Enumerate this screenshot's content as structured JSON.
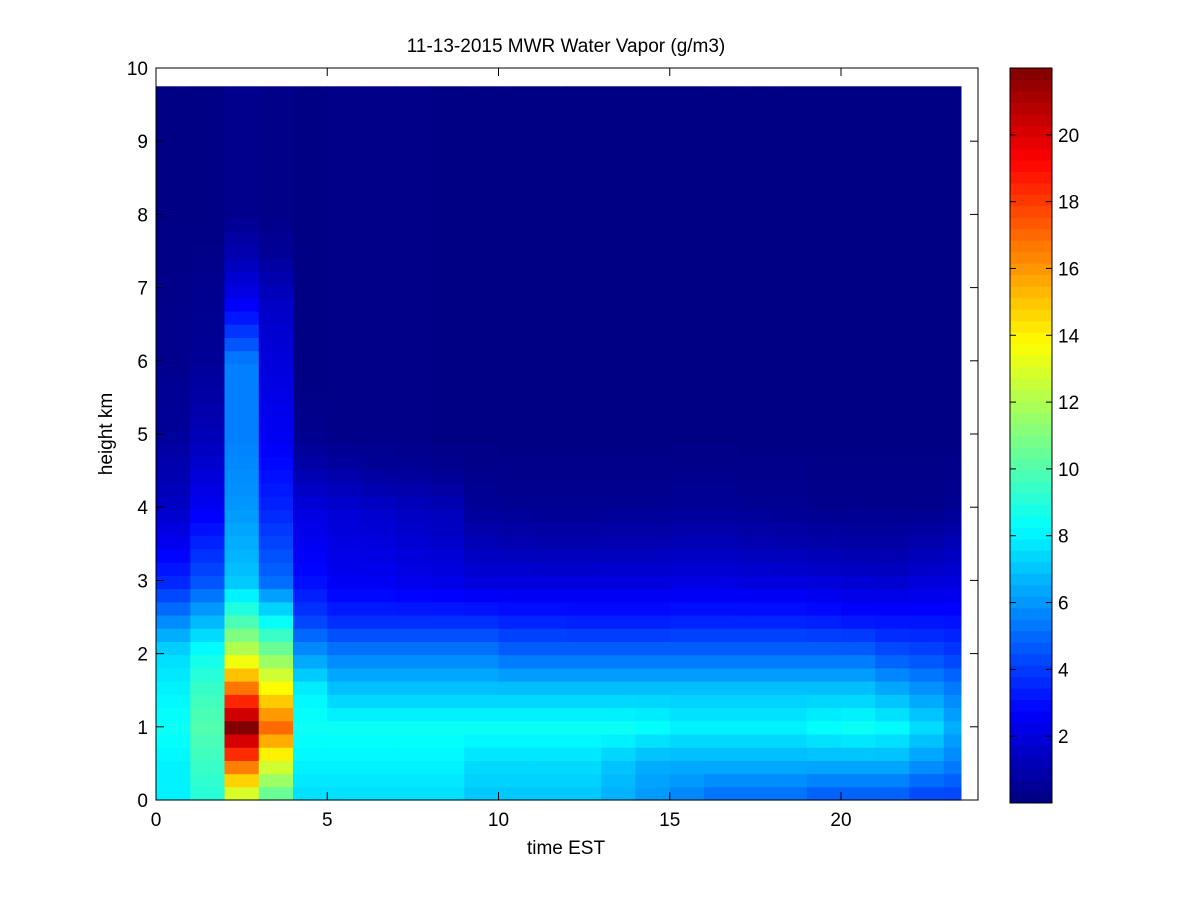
{
  "chart_data": {
    "type": "heatmap",
    "title": "11-13-2015 MWR Water Vapor (g/m3)",
    "xlabel": "time EST",
    "ylabel": "height km",
    "xlim": [
      0,
      24
    ],
    "ylim": [
      0,
      10
    ],
    "x_ticks": [
      0,
      5,
      10,
      15,
      20
    ],
    "y_ticks": [
      0,
      1,
      2,
      3,
      4,
      5,
      6,
      7,
      8,
      9,
      10
    ],
    "colorbar": {
      "colormap": "jet",
      "clim": [
        0,
        22
      ],
      "ticks": [
        2,
        4,
        6,
        8,
        10,
        12,
        14,
        16,
        18,
        20
      ]
    },
    "time_bins_hr": [
      0,
      1,
      2,
      3,
      4,
      5,
      6,
      7,
      8,
      9,
      10,
      11,
      12,
      13,
      14,
      15,
      16,
      17,
      18,
      19,
      20,
      21,
      22,
      23
    ],
    "height_top_km": 9.75,
    "profiles": [
      {
        "time": 0,
        "values_at_heights": {
          "0": 8,
          "0.5": 8,
          "1": 8.5,
          "1.5": 8,
          "2": 7.5,
          "2.5": 5.5,
          "3": 3.5,
          "4": 1.5,
          "5": 0.6,
          "6": 0.3,
          "7": 0.2,
          "8": 0.1
        }
      },
      {
        "time": 1,
        "values_at_heights": {
          "0": 9,
          "0.5": 9.5,
          "1": 10,
          "1.5": 9.5,
          "2": 8.5,
          "2.5": 6.5,
          "3": 4.5,
          "4": 2.5,
          "5": 1.2,
          "6": 0.5,
          "7": 0.3,
          "8": 0.1
        }
      },
      {
        "time": 2,
        "values_at_heights": {
          "0": 12,
          "0.5": 17,
          "1": 22,
          "1.5": 17,
          "2": 12.5,
          "2.5": 9.5,
          "3": 7,
          "4": 6,
          "5": 5.5,
          "6": 5.5,
          "6.5": 3.5,
          "7": 2,
          "7.5": 1,
          "8": 0.3
        }
      },
      {
        "time": 3,
        "values_at_heights": {
          "0": 10,
          "0.5": 13,
          "1": 17,
          "1.5": 14,
          "2": 11,
          "2.5": 8,
          "3": 5,
          "4": 3.5,
          "5": 2.5,
          "6": 2,
          "6.8": 1.5,
          "7.5": 0.5,
          "8": 0.2
        }
      },
      {
        "time": 4,
        "values_at_heights": {
          "0": 7.5,
          "0.5": 8,
          "1": 8.5,
          "1.5": 8,
          "2": 6,
          "2.5": 4,
          "3": 3,
          "4": 2,
          "4.5": 1,
          "5": 0.3,
          "6": 0.1
        }
      },
      {
        "time": 5,
        "values_at_heights": {
          "0": 7.5,
          "0.5": 8,
          "1": 8.5,
          "1.5": 7,
          "2": 5.5,
          "2.5": 3.5,
          "3": 2.5,
          "4": 1.8,
          "4.5": 0.8,
          "5": 0.2
        }
      },
      {
        "time": 6,
        "values_at_heights": {
          "0": 7.5,
          "0.5": 8,
          "1": 8.5,
          "1.5": 7,
          "2": 5.5,
          "2.5": 3.5,
          "3": 2.5,
          "4": 1.6,
          "4.5": 0.6,
          "5": 0.2
        }
      },
      {
        "time": 7,
        "values_at_heights": {
          "0": 7.5,
          "0.5": 8,
          "1": 8.5,
          "1.5": 7,
          "2": 5.5,
          "2.5": 3.5,
          "3": 2.3,
          "4": 1.4,
          "4.5": 0.5,
          "5": 0.2
        }
      },
      {
        "time": 8,
        "values_at_heights": {
          "0": 7.5,
          "0.5": 8,
          "1": 8.5,
          "1.5": 7,
          "2": 5.5,
          "2.5": 3.5,
          "3": 2.2,
          "4": 1.2,
          "4.5": 0.4,
          "5": 0.1
        }
      },
      {
        "time": 9,
        "values_at_heights": {
          "0": 7,
          "0.5": 7.5,
          "1": 8.5,
          "1.5": 7,
          "2": 5.5,
          "2.5": 3.5,
          "3": 2,
          "3.5": 1.2,
          "4": 0.5,
          "5": 0.1
        }
      },
      {
        "time": 10,
        "values_at_heights": {
          "0": 7,
          "0.5": 7.5,
          "1": 8.5,
          "1.5": 7,
          "2": 5,
          "2.5": 3.3,
          "3": 2,
          "3.5": 1.1,
          "4": 0.4,
          "5": 0.1
        }
      },
      {
        "time": 11,
        "values_at_heights": {
          "0": 7,
          "0.5": 7.5,
          "1": 8.5,
          "1.5": 7,
          "2": 5,
          "2.5": 3.3,
          "3": 2,
          "3.5": 1,
          "4": 0.4,
          "5": 0.1
        }
      },
      {
        "time": 12,
        "values_at_heights": {
          "0": 7,
          "0.5": 7.5,
          "1": 8.5,
          "1.5": 7,
          "2": 5,
          "2.5": 3.2,
          "3": 2,
          "3.5": 1,
          "4": 0.4,
          "5": 0.1
        }
      },
      {
        "time": 13,
        "values_at_heights": {
          "0": 6.5,
          "0.5": 7,
          "1": 8.5,
          "1.5": 7,
          "2": 5,
          "2.5": 3.2,
          "3": 2,
          "3.5": 1.1,
          "4": 0.4,
          "5": 0.1
        }
      },
      {
        "time": 14,
        "values_at_heights": {
          "0": 6,
          "0.5": 6.5,
          "1": 8.3,
          "1.5": 7,
          "2": 5,
          "2.5": 3.2,
          "3": 2,
          "3.5": 1.1,
          "4": 0.4,
          "5": 0.1
        }
      },
      {
        "time": 15,
        "values_at_heights": {
          "0": 5.5,
          "0.5": 6.5,
          "1": 8,
          "1.5": 7,
          "2": 5,
          "2.5": 3.3,
          "3": 2.1,
          "3.5": 1.2,
          "4": 0.5,
          "5": 0.1
        }
      },
      {
        "time": 16,
        "values_at_heights": {
          "0": 5,
          "0.5": 6.5,
          "1": 8,
          "1.5": 7,
          "2": 5,
          "2.5": 3.3,
          "3": 2.1,
          "3.5": 1.2,
          "4": 0.5,
          "5": 0.1
        }
      },
      {
        "time": 17,
        "values_at_heights": {
          "0": 5,
          "0.5": 6.5,
          "1": 8,
          "1.5": 7,
          "2": 5,
          "2.5": 3.3,
          "3": 2,
          "3.5": 1.1,
          "4": 0.4,
          "5": 0.1
        }
      },
      {
        "time": 18,
        "values_at_heights": {
          "0": 5,
          "0.5": 6.5,
          "1": 8,
          "1.5": 7,
          "2": 5,
          "2.5": 3.3,
          "3": 2,
          "3.5": 1,
          "4": 0.4,
          "5": 0.1
        }
      },
      {
        "time": 19,
        "values_at_heights": {
          "0": 4.5,
          "0.5": 6.5,
          "1": 8.3,
          "1.5": 7,
          "2": 5,
          "2.5": 3.2,
          "3": 1.9,
          "3.5": 0.9,
          "4": 0.3,
          "5": 0.1
        }
      },
      {
        "time": 20,
        "values_at_heights": {
          "0": 4.5,
          "0.5": 6.5,
          "1": 8.5,
          "1.5": 7,
          "2": 5,
          "2.5": 3,
          "3": 1.8,
          "3.5": 0.8,
          "4": 0.3,
          "5": 0.1
        }
      },
      {
        "time": 21,
        "values_at_heights": {
          "0": 4.5,
          "0.5": 6.5,
          "1": 8.2,
          "1.5": 6.5,
          "2": 4.5,
          "2.5": 3,
          "3": 1.7,
          "3.5": 0.8,
          "4": 0.3,
          "5": 0.1
        }
      },
      {
        "time": 22,
        "values_at_heights": {
          "0": 4,
          "0.5": 6,
          "1": 7.5,
          "1.5": 6,
          "2": 4.3,
          "2.5": 3,
          "3": 1.9,
          "3.5": 1,
          "4": 0.3,
          "5": 0.1
        }
      },
      {
        "time": 23,
        "values_at_heights": {
          "0": 4,
          "0.5": 5.5,
          "1": 6.5,
          "1.5": 5.5,
          "2": 4,
          "2.5": 3,
          "3": 2,
          "3.5": 1.2,
          "4": 0.4,
          "5": 0.1
        }
      }
    ]
  }
}
